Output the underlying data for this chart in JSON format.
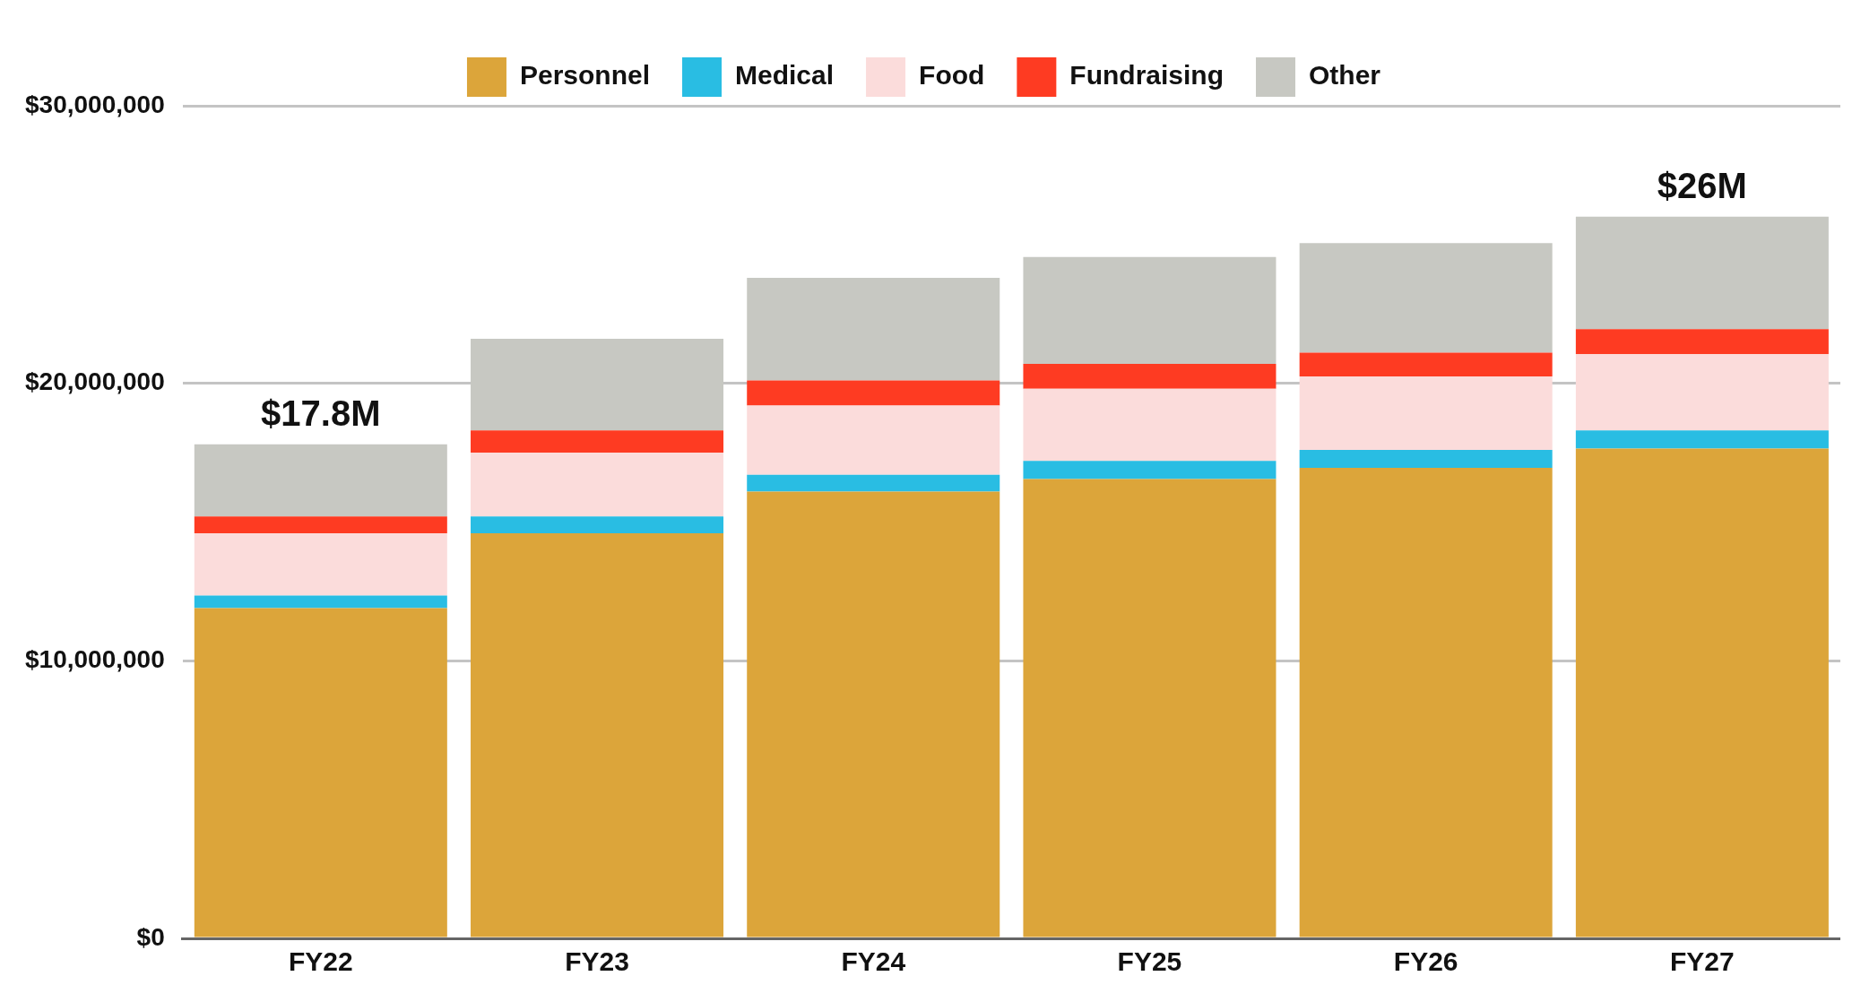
{
  "chart_data": {
    "type": "bar",
    "stacked": true,
    "categories": [
      "FY22",
      "FY23",
      "FY24",
      "FY25",
      "FY26",
      "FY27"
    ],
    "series": [
      {
        "name": "Personnel",
        "color": "#dca53a",
        "values": [
          11900000,
          14600000,
          16100000,
          16550000,
          16950000,
          17650000
        ]
      },
      {
        "name": "Medical",
        "color": "#29bde3",
        "values": [
          450000,
          600000,
          600000,
          650000,
          650000,
          650000
        ]
      },
      {
        "name": "Food",
        "color": "#fbdcdb",
        "values": [
          2250000,
          2300000,
          2500000,
          2600000,
          2650000,
          2750000
        ]
      },
      {
        "name": "Fundraising",
        "color": "#fe3b22",
        "values": [
          600000,
          800000,
          900000,
          900000,
          850000,
          900000
        ]
      },
      {
        "name": "Other",
        "color": "#c7c8c2",
        "values": [
          2600000,
          3300000,
          3700000,
          3850000,
          3950000,
          4050000
        ]
      }
    ],
    "totals": [
      "$17.8M",
      null,
      null,
      null,
      null,
      "$26M"
    ],
    "ylim": [
      0,
      30000000
    ],
    "yticks": [
      {
        "value": 0,
        "label": "$0"
      },
      {
        "value": 10000000,
        "label": "$10,000,000"
      },
      {
        "value": 20000000,
        "label": "$20,000,000"
      },
      {
        "value": 30000000,
        "label": "$30,000,000"
      }
    ],
    "grid": "y",
    "legend": "top"
  }
}
